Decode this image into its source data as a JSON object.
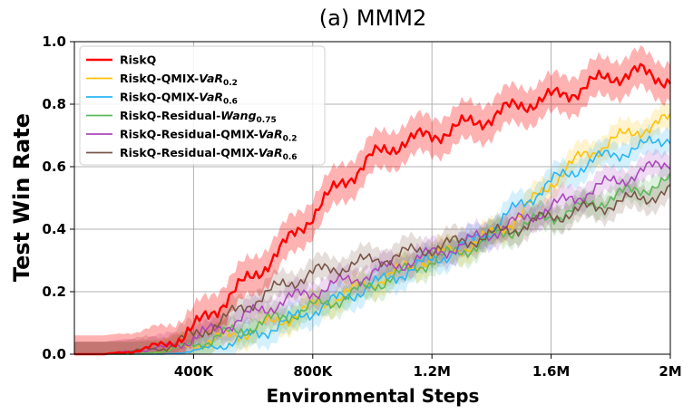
{
  "chart_data": {
    "type": "line",
    "title": "(a) MMM2",
    "xlabel": "Environmental Steps",
    "ylabel": "Test Win Rate",
    "xlim": [
      0,
      2000000
    ],
    "ylim": [
      0,
      1.0
    ],
    "grid": true,
    "legend_position": "top-left",
    "x_ticks": [
      {
        "value": 400000,
        "label": "400K"
      },
      {
        "value": 800000,
        "label": "800K"
      },
      {
        "value": 1200000,
        "label": "1.2M"
      },
      {
        "value": 1600000,
        "label": "1.6M"
      },
      {
        "value": 2000000,
        "label": "2M"
      }
    ],
    "y_ticks": [
      {
        "value": 0.0,
        "label": "0.0"
      },
      {
        "value": 0.2,
        "label": "0.2"
      },
      {
        "value": 0.4,
        "label": "0.4"
      },
      {
        "value": 0.6,
        "label": "0.6"
      },
      {
        "value": 0.8,
        "label": "0.8"
      },
      {
        "value": 1.0,
        "label": "1.0"
      }
    ],
    "x": [
      0,
      100000,
      200000,
      300000,
      400000,
      500000,
      600000,
      700000,
      800000,
      900000,
      1000000,
      1100000,
      1200000,
      1300000,
      1400000,
      1500000,
      1600000,
      1700000,
      1800000,
      1900000,
      2000000
    ],
    "series": [
      {
        "name": "RiskQ",
        "legend_main": "RiskQ",
        "legend_sub": "",
        "legend_em": "",
        "color": "#ff0000",
        "band": 0.06,
        "width": 2.4,
        "values": [
          0.0,
          0.0,
          0.01,
          0.03,
          0.08,
          0.17,
          0.25,
          0.34,
          0.45,
          0.55,
          0.63,
          0.68,
          0.7,
          0.73,
          0.76,
          0.8,
          0.82,
          0.85,
          0.89,
          0.9,
          0.88
        ]
      },
      {
        "name": "RiskQ-QMIX-VaR0.2",
        "legend_main": "RiskQ-QMIX-",
        "legend_em": "VaR",
        "legend_sub": "0.2",
        "color": "#ffc107",
        "band": 0.04,
        "width": 1.6,
        "values": [
          0.0,
          0.0,
          0.0,
          0.01,
          0.03,
          0.05,
          0.08,
          0.11,
          0.15,
          0.19,
          0.23,
          0.27,
          0.31,
          0.34,
          0.38,
          0.45,
          0.55,
          0.63,
          0.68,
          0.72,
          0.75
        ]
      },
      {
        "name": "RiskQ-QMIX-VaR0.6",
        "legend_main": "RiskQ-QMIX-",
        "legend_em": "VaR",
        "legend_sub": "0.6",
        "color": "#29b6f6",
        "band": 0.04,
        "width": 1.6,
        "values": [
          0.0,
          0.0,
          0.0,
          0.0,
          0.01,
          0.03,
          0.06,
          0.1,
          0.14,
          0.18,
          0.22,
          0.26,
          0.3,
          0.34,
          0.4,
          0.48,
          0.55,
          0.6,
          0.64,
          0.66,
          0.7
        ]
      },
      {
        "name": "RiskQ-Residual-Wang0.75",
        "legend_main": "RiskQ-Residual-",
        "legend_em": "Wang",
        "legend_sub": "0.75",
        "color": "#5cb85c",
        "band": 0.04,
        "width": 1.6,
        "values": [
          0.0,
          0.0,
          0.0,
          0.01,
          0.03,
          0.06,
          0.09,
          0.12,
          0.15,
          0.18,
          0.22,
          0.26,
          0.3,
          0.33,
          0.37,
          0.41,
          0.44,
          0.47,
          0.5,
          0.53,
          0.55
        ]
      },
      {
        "name": "RiskQ-Residual-QMIX-VaR0.2",
        "legend_main": "RiskQ-Residual-QMIX-",
        "legend_em": "VaR",
        "legend_sub": "0.2",
        "color": "#ab47bc",
        "band": 0.04,
        "width": 1.6,
        "values": [
          0.0,
          0.0,
          0.01,
          0.02,
          0.05,
          0.09,
          0.13,
          0.17,
          0.2,
          0.23,
          0.26,
          0.29,
          0.32,
          0.35,
          0.39,
          0.43,
          0.47,
          0.51,
          0.55,
          0.58,
          0.62
        ]
      },
      {
        "name": "RiskQ-Residual-QMIX-VaR0.6",
        "legend_main": "RiskQ-Residual-QMIX-",
        "legend_em": "VaR",
        "legend_sub": "0.6",
        "color": "#795548",
        "band": 0.04,
        "width": 1.6,
        "values": [
          0.0,
          0.0,
          0.01,
          0.02,
          0.06,
          0.11,
          0.17,
          0.22,
          0.26,
          0.28,
          0.3,
          0.32,
          0.34,
          0.36,
          0.38,
          0.41,
          0.44,
          0.46,
          0.48,
          0.5,
          0.52
        ]
      }
    ]
  }
}
